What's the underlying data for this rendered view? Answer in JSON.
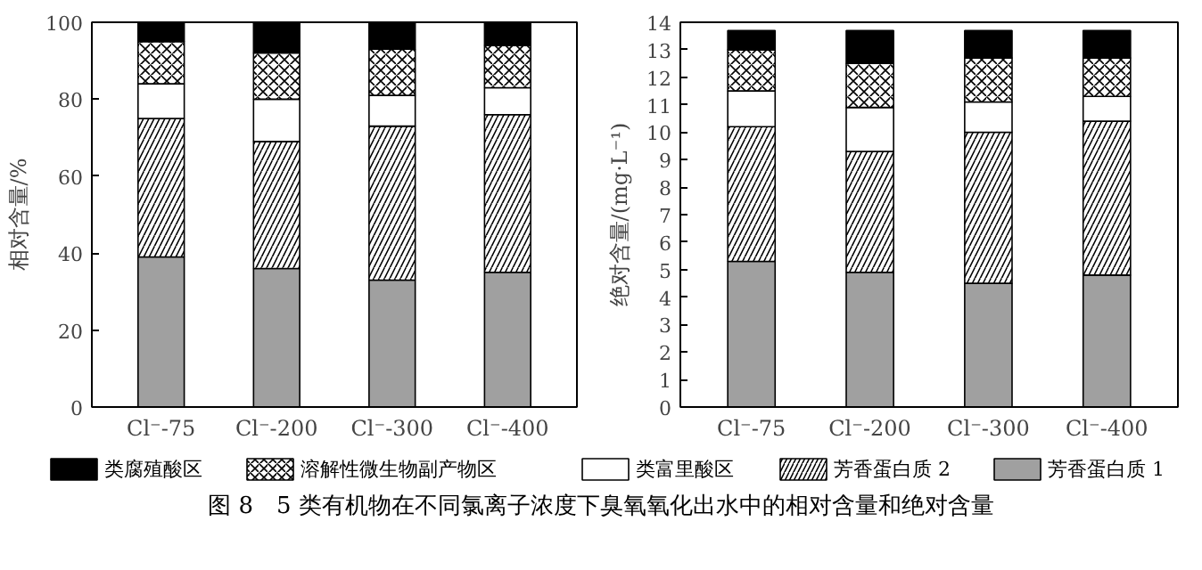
{
  "chart_data": [
    {
      "type": "bar",
      "stacked": true,
      "ylabel": "相对含量/%",
      "categories": [
        "Cl⁻-75",
        "Cl⁻-200",
        "Cl⁻-300",
        "Cl⁻-400"
      ],
      "ylim": [
        0,
        100
      ],
      "yticks": [
        0,
        20,
        40,
        60,
        80,
        100
      ],
      "grid": false,
      "legend": "bottom",
      "series": [
        {
          "name": "芳香蛋白质 1",
          "color": "#a0a0a0",
          "values": [
            39,
            36,
            33,
            35
          ]
        },
        {
          "name": "芳香蛋白质 2",
          "color": "#ffffff",
          "values": [
            36,
            33,
            40,
            41
          ]
        },
        {
          "name": "类富里酸区",
          "color": "#ffffff",
          "values": [
            9,
            11,
            8,
            7
          ]
        },
        {
          "name": "溶解性微生物副产物区",
          "color": "#ffffff",
          "values": [
            11,
            12,
            12,
            11
          ]
        },
        {
          "name": "类腐殖酸区",
          "color": "#000000",
          "values": [
            5,
            8,
            7,
            6
          ]
        }
      ],
      "annotations": [
        "图 8　5 类有机物在不同氯离子浓度下臭氧氧化出水中的相对含量和绝对含量"
      ]
    },
    {
      "type": "bar",
      "stacked": true,
      "ylabel": "绝对含量/(mg·L⁻¹)",
      "categories": [
        "Cl⁻-75",
        "Cl⁻-200",
        "Cl⁻-300",
        "Cl⁻-400"
      ],
      "ylim": [
        0,
        14
      ],
      "yticks": [
        0,
        1,
        2,
        3,
        4,
        5,
        6,
        7,
        8,
        9,
        10,
        11,
        12,
        13,
        14
      ],
      "grid": false,
      "series": [
        {
          "color": "#a0a0a0",
          "values": [
            5.3,
            4.9,
            4.5,
            4.8
          ]
        },
        {
          "color": "#ffffff",
          "values": [
            4.9,
            4.4,
            5.5,
            5.6
          ]
        },
        {
          "color": "#ffffff",
          "values": [
            1.3,
            1.6,
            1.1,
            0.9
          ]
        },
        {
          "color": "#ffffff",
          "values": [
            1.5,
            1.6,
            1.6,
            1.4
          ]
        },
        {
          "color": "#000000",
          "values": [
            0.7,
            1.2,
            1.0,
            1.0
          ]
        }
      ]
    }
  ]
}
